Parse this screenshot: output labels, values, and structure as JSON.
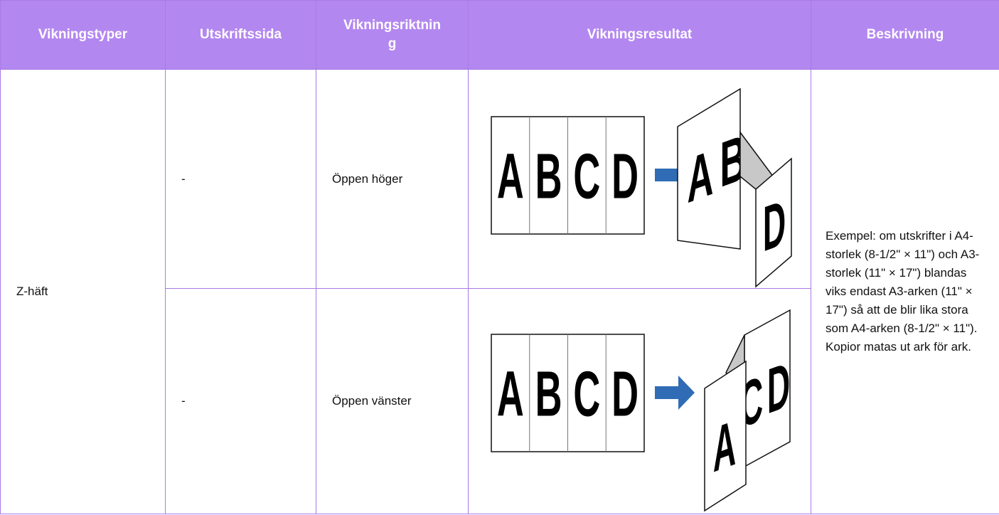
{
  "table": {
    "headers": [
      "Vikningstyper",
      "Utskriftssida",
      "Vikningsriktning",
      "Vikningsresultat",
      "Beskrivning"
    ],
    "fold_type": "Z-häft",
    "rows": [
      {
        "side": "-",
        "direction": "Öppen höger",
        "result": {
          "sheet": [
            "A",
            "B",
            "C",
            "D"
          ],
          "folded": [
            "A",
            "B",
            "D"
          ]
        }
      },
      {
        "side": "-",
        "direction": "Öppen vänster",
        "result": {
          "sheet": [
            "A",
            "B",
            "C",
            "D"
          ],
          "folded": [
            "A",
            "C",
            "D"
          ]
        }
      }
    ],
    "description": "Exempel: om utskrifter i A4-storlek (8-1/2\" × 11\") och A3-storlek (11\" × 17\") blandas viks endast A3-arken (11\" × 17\") så att de blir lika stora som A4-arken (8-1/2\" × 11\"). Kopior matas ut ark för ark."
  }
}
